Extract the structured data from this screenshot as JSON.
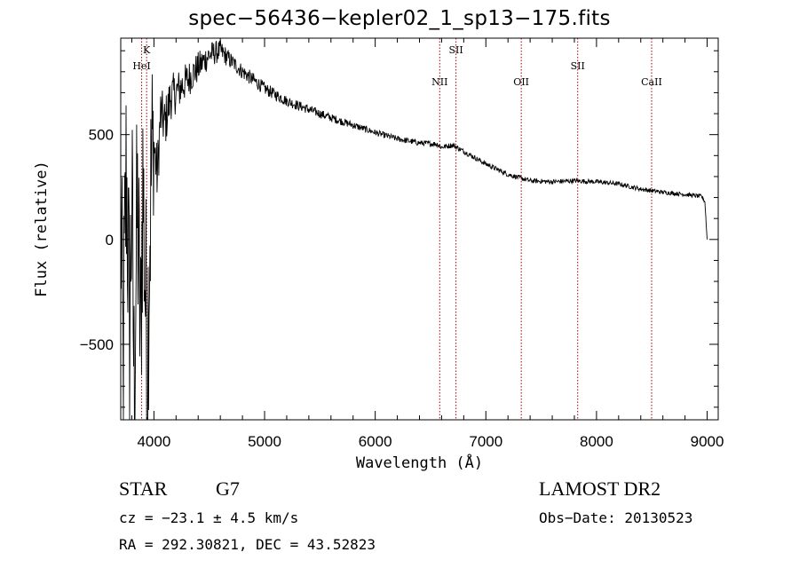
{
  "chart_data": {
    "type": "line",
    "title": "spec−56436−kepler02_1_sp13−175.fits",
    "xlabel": "Wavelength (Å)",
    "ylabel": "Flux (relative)",
    "xlim": [
      3700,
      9100
    ],
    "ylim": [
      -860,
      960
    ],
    "x_ticks": [
      4000,
      5000,
      6000,
      7000,
      8000,
      9000
    ],
    "y_ticks": [
      -500,
      0,
      500
    ],
    "y_tick_labels": [
      "−500",
      "0",
      "500"
    ],
    "line_color": "#000000",
    "marker_color": "#aa0000",
    "grid": false,
    "spectrum": {
      "x_start": 3700,
      "x_end": 9000,
      "anchors": [
        [
          3700,
          150
        ],
        [
          3720,
          -600
        ],
        [
          3750,
          350
        ],
        [
          3780,
          -400
        ],
        [
          3800,
          200
        ],
        [
          3820,
          -700
        ],
        [
          3850,
          150
        ],
        [
          3880,
          -500
        ],
        [
          3900,
          300
        ],
        [
          3920,
          -200
        ],
        [
          3940,
          -550
        ],
        [
          3960,
          0
        ],
        [
          3980,
          350
        ],
        [
          4000,
          450
        ],
        [
          4030,
          300
        ],
        [
          4060,
          600
        ],
        [
          4100,
          550
        ],
        [
          4150,
          680
        ],
        [
          4200,
          700
        ],
        [
          4300,
          760
        ],
        [
          4400,
          820
        ],
        [
          4500,
          880
        ],
        [
          4600,
          900
        ],
        [
          4700,
          850
        ],
        [
          4800,
          800
        ],
        [
          5000,
          720
        ],
        [
          5200,
          660
        ],
        [
          5400,
          620
        ],
        [
          5600,
          580
        ],
        [
          5800,
          545
        ],
        [
          6000,
          510
        ],
        [
          6200,
          480
        ],
        [
          6400,
          460
        ],
        [
          6560,
          455
        ],
        [
          6600,
          440
        ],
        [
          6700,
          450
        ],
        [
          6800,
          420
        ],
        [
          7000,
          360
        ],
        [
          7200,
          310
        ],
        [
          7400,
          280
        ],
        [
          7600,
          275
        ],
        [
          7800,
          280
        ],
        [
          8000,
          275
        ],
        [
          8200,
          265
        ],
        [
          8400,
          240
        ],
        [
          8600,
          225
        ],
        [
          8800,
          215
        ],
        [
          8950,
          205
        ],
        [
          8980,
          180
        ],
        [
          9000,
          0
        ]
      ],
      "noise_profile": [
        [
          3700,
          600
        ],
        [
          3990,
          600
        ],
        [
          4000,
          150
        ],
        [
          4200,
          100
        ],
        [
          4700,
          40
        ],
        [
          5200,
          25
        ],
        [
          6000,
          15
        ],
        [
          7000,
          12
        ],
        [
          9000,
          10
        ]
      ]
    },
    "lines": [
      {
        "label": "K",
        "x": 3934,
        "label_row": 1
      },
      {
        "label": "HeI",
        "x": 3889,
        "label_row": 2
      },
      {
        "label": "NII",
        "x": 6583,
        "label_row": 3
      },
      {
        "label": "SII",
        "x": 6730,
        "label_row": 1
      },
      {
        "label": "OII",
        "x": 7320,
        "label_row": 3
      },
      {
        "label": "SII",
        "x": 7830,
        "label_row": 2
      },
      {
        "label": "CaII",
        "x": 8498,
        "label_row": 3
      }
    ]
  },
  "annotations": {
    "object_class": "STAR",
    "subclass": "G7",
    "survey": "LAMOST DR2",
    "velocity": "cz = −23.1 ± 4.5 km/s",
    "obs_date": "Obs−Date: 20130523",
    "coords": "RA = 292.30821, DEC =  43.52823"
  }
}
